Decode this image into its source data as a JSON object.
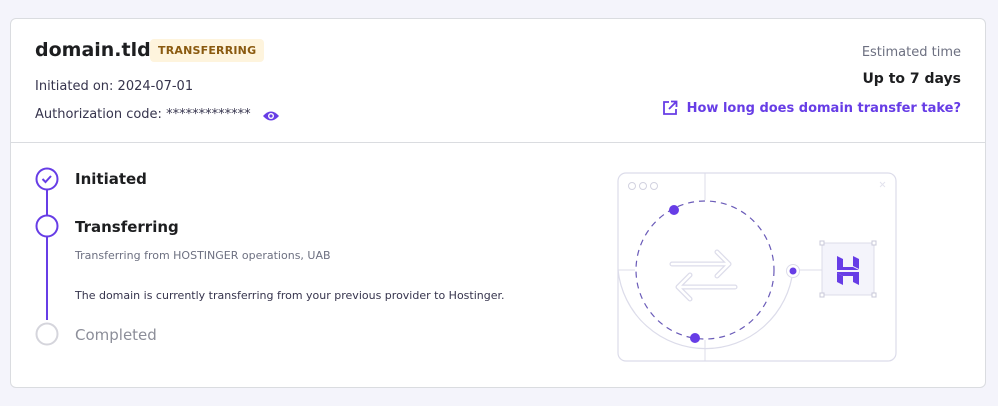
{
  "domain": {
    "name": "domain.tld",
    "status": "TRANSFERRING",
    "initiated_label": "Initiated on: 2024-07-01",
    "auth_label": "Authorization code: *************",
    "eye_icon": "eye-icon"
  },
  "estimate": {
    "label": "Estimated time",
    "value": "Up to 7 days",
    "link": "How long does domain transfer take?",
    "link_icon": "external-link-icon"
  },
  "steps": [
    {
      "label": "Initiated",
      "state": "done"
    },
    {
      "label": "Transferring",
      "state": "current",
      "details": [
        "Transferring from HOSTINGER operations, UAB",
        "The domain is currently transferring from your previous provider to Hostinger."
      ]
    },
    {
      "label": "Completed",
      "state": "pending"
    }
  ],
  "colors": {
    "accent": "#673de6",
    "badge_bg": "#fef4dd",
    "badge_text": "#8a5a10",
    "background": "#f4f4fb"
  }
}
